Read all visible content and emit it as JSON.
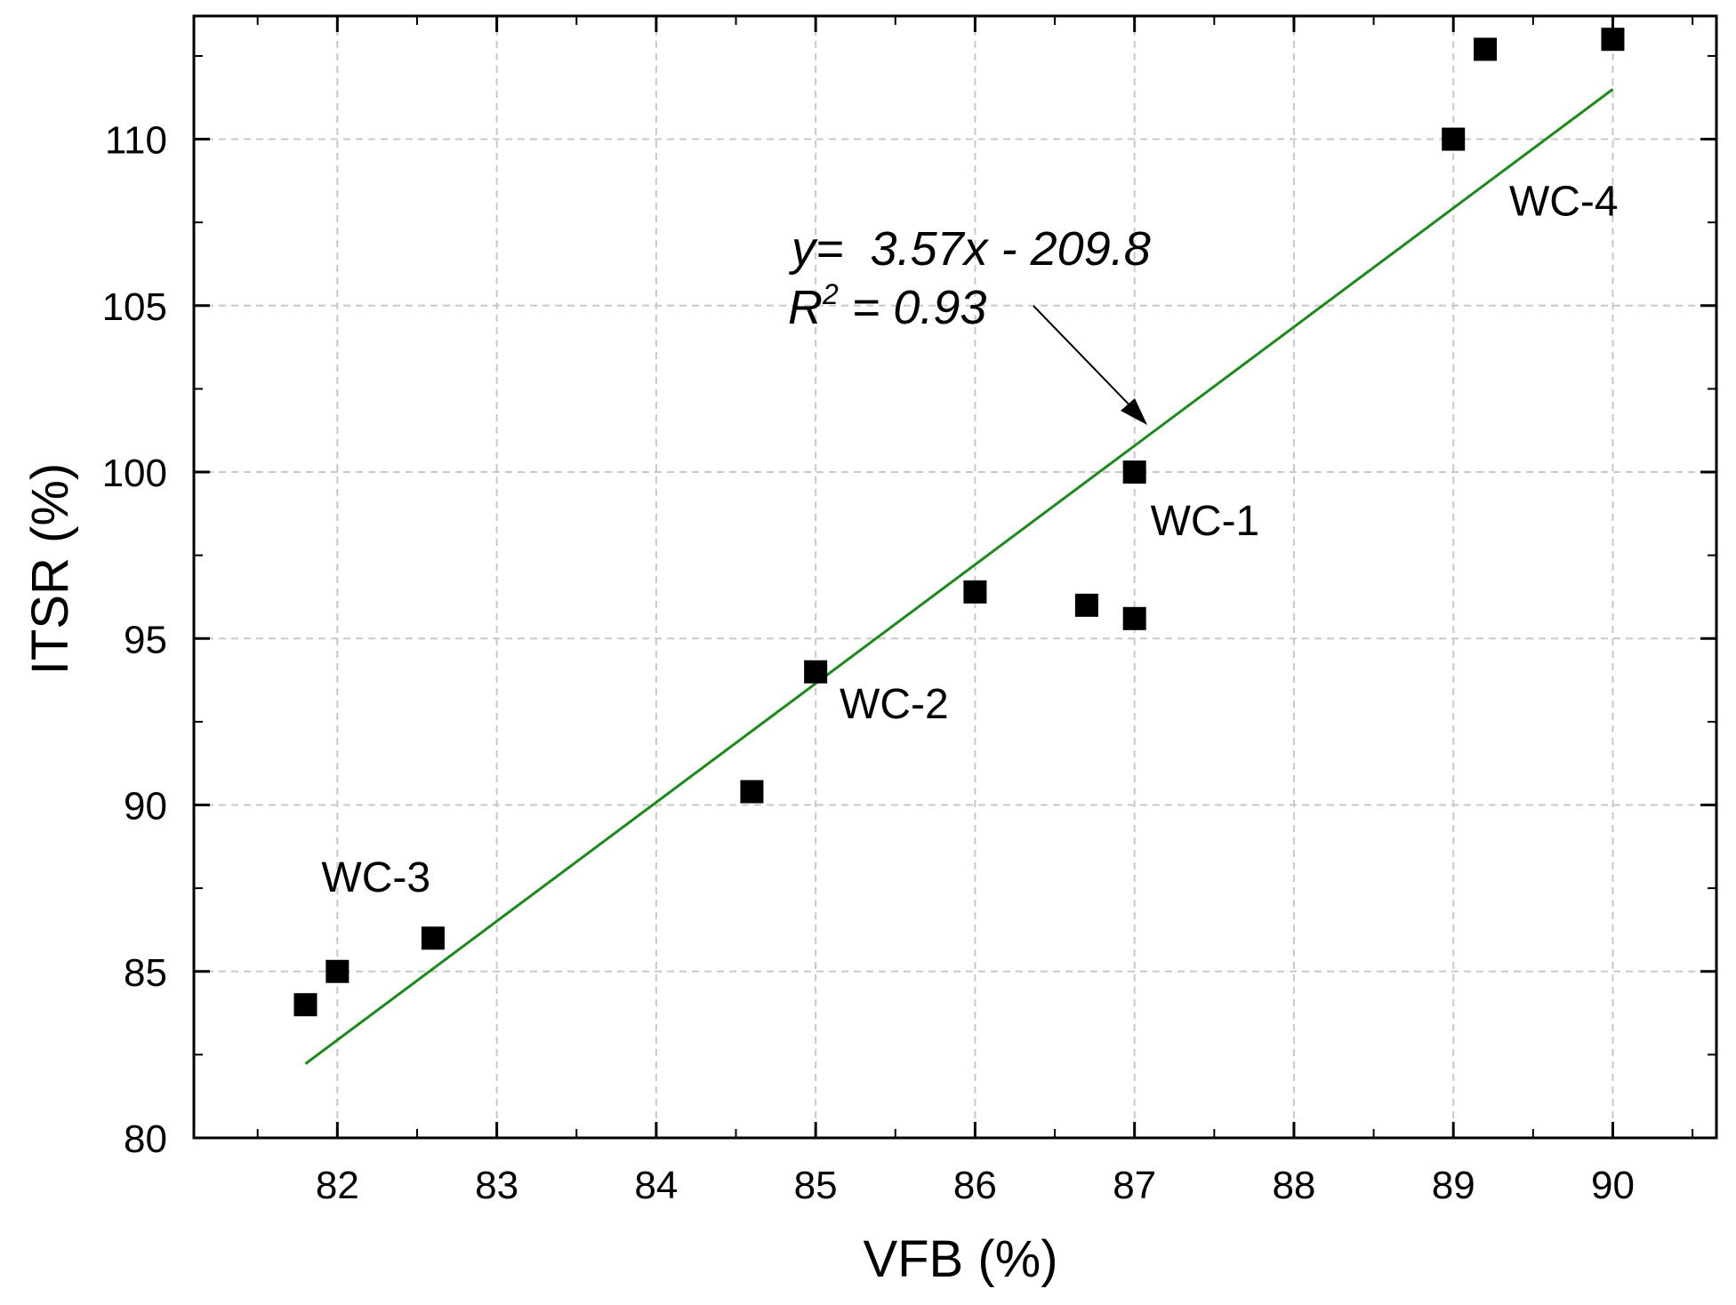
{
  "chart_data": {
    "type": "scatter",
    "title": "",
    "xlabel": "VFB (%)",
    "ylabel": "ITSR (%)",
    "xlim": [
      81.1,
      90.65
    ],
    "ylim": [
      80,
      113.7
    ],
    "xticks": [
      82,
      83,
      84,
      85,
      86,
      87,
      88,
      89,
      90
    ],
    "yticks": [
      80,
      85,
      90,
      95,
      100,
      105,
      110
    ],
    "xtick_labels": [
      "82",
      "83",
      "84",
      "85",
      "86",
      "87",
      "88",
      "89",
      "90"
    ],
    "ytick_labels": [
      "80",
      "85",
      "90",
      "95",
      "100",
      "105",
      "110"
    ],
    "grid": true,
    "series": [
      {
        "name": "data",
        "marker": "square",
        "color": "#000000",
        "x": [
          81.8,
          82.0,
          82.6,
          84.6,
          85.0,
          86.0,
          86.7,
          87.0,
          87.0,
          89.0,
          89.2,
          90.0
        ],
        "y": [
          84.0,
          85.0,
          86.0,
          90.4,
          94.0,
          96.4,
          96.0,
          95.6,
          100.0,
          110.0,
          112.7,
          113.0
        ]
      }
    ],
    "fit": {
      "slope": 3.57,
      "intercept": -209.8,
      "x_range": [
        81.8,
        90.0
      ],
      "color": "#1a8a1a"
    },
    "equation": {
      "line1": "y=  3.57x - 209.8",
      "r_label": "R",
      "r_sup": "2",
      "r_rest": " = 0.93"
    },
    "point_labels": [
      {
        "text": "WC-1",
        "x": 87.1,
        "y": 98.1
      },
      {
        "text": "WC-2",
        "x": 85.15,
        "y": 92.6
      },
      {
        "text": "WC-3",
        "x": 81.9,
        "y": 87.4
      },
      {
        "text": "WC-4",
        "x": 89.35,
        "y": 107.7
      }
    ]
  }
}
